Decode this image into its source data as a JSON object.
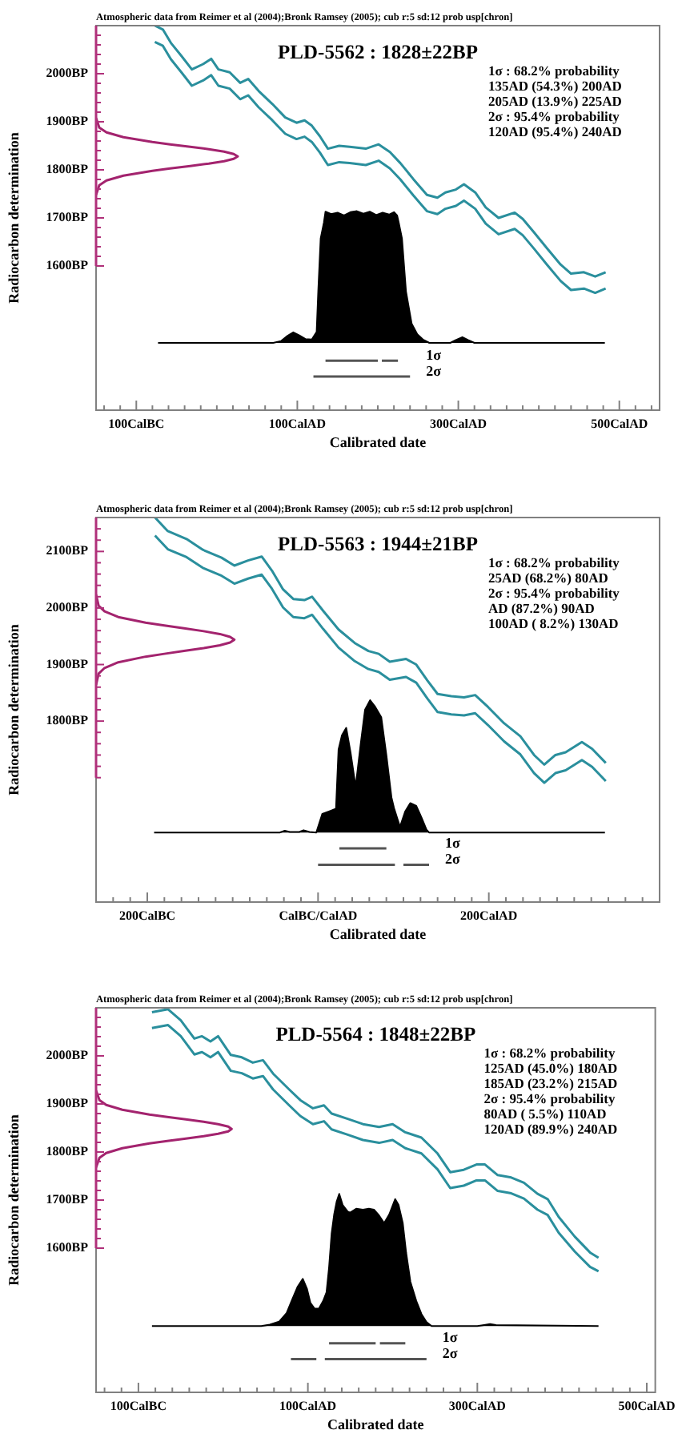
{
  "chart_data": [
    {
      "type": "line",
      "title": "PLD-5562 : 1828±22BP",
      "xlabel": "Calibrated date",
      "ylabel": "Radiocarbon determination",
      "annotations": [
        "Atmospheric data from Reimer et al (2004);Bronk Ramsey (2005); cub r:5 sd:12 prob usp[chron]",
        "1σ : 68.2% probability",
        "135AD (54.3%) 200AD",
        "205AD (13.9%) 225AD",
        "2σ : 95.4% probability",
        "120AD (95.4%) 240AD"
      ],
      "xlim": [
        -150,
        550
      ],
      "ylim": [
        1300,
        2100
      ],
      "xticks": [
        {
          "value": -140,
          "label": null
        },
        {
          "value": -120,
          "label": null
        },
        {
          "value": -100,
          "label": "100CalBC"
        },
        {
          "value": -80,
          "label": null
        },
        {
          "value": -60,
          "label": null
        },
        {
          "value": -40,
          "label": null
        },
        {
          "value": -20,
          "label": null
        },
        {
          "value": 0,
          "label": null
        },
        {
          "value": 20,
          "label": null
        },
        {
          "value": 40,
          "label": null
        },
        {
          "value": 60,
          "label": null
        },
        {
          "value": 80,
          "label": null
        },
        {
          "value": 100,
          "label": "100CalAD"
        },
        {
          "value": 120,
          "label": null
        },
        {
          "value": 140,
          "label": null
        },
        {
          "value": 160,
          "label": null
        },
        {
          "value": 180,
          "label": null
        },
        {
          "value": 200,
          "label": null
        },
        {
          "value": 220,
          "label": null
        },
        {
          "value": 240,
          "label": null
        },
        {
          "value": 260,
          "label": null
        },
        {
          "value": 280,
          "label": null
        },
        {
          "value": 300,
          "label": "300CalAD"
        },
        {
          "value": 320,
          "label": null
        },
        {
          "value": 340,
          "label": null
        },
        {
          "value": 360,
          "label": null
        },
        {
          "value": 380,
          "label": null
        },
        {
          "value": 400,
          "label": null
        },
        {
          "value": 420,
          "label": null
        },
        {
          "value": 440,
          "label": null
        },
        {
          "value": 460,
          "label": null
        },
        {
          "value": 480,
          "label": null
        },
        {
          "value": 500,
          "label": "500CalAD"
        },
        {
          "value": 520,
          "label": null
        },
        {
          "value": 540,
          "label": null
        }
      ],
      "yticks": [
        {
          "value": 1600,
          "label": "1600BP"
        },
        {
          "value": 1620,
          "label": null
        },
        {
          "value": 1640,
          "label": null
        },
        {
          "value": 1660,
          "label": null
        },
        {
          "value": 1680,
          "label": null
        },
        {
          "value": 1700,
          "label": "1700BP"
        },
        {
          "value": 1720,
          "label": null
        },
        {
          "value": 1740,
          "label": null
        },
        {
          "value": 1760,
          "label": null
        },
        {
          "value": 1780,
          "label": null
        },
        {
          "value": 1800,
          "label": "1800BP"
        },
        {
          "value": 1820,
          "label": null
        },
        {
          "value": 1840,
          "label": null
        },
        {
          "value": 1860,
          "label": null
        },
        {
          "value": 1880,
          "label": null
        },
        {
          "value": 1900,
          "label": "1900BP"
        },
        {
          "value": 1920,
          "label": null
        },
        {
          "value": 1940,
          "label": null
        },
        {
          "value": 1960,
          "label": null
        },
        {
          "value": 1980,
          "label": null
        },
        {
          "value": 2000,
          "label": "2000BP"
        },
        {
          "value": 2020,
          "label": null
        },
        {
          "value": 2040,
          "label": null
        },
        {
          "value": 2060,
          "label": null
        },
        {
          "value": 2080,
          "label": null
        }
      ],
      "series": [
        {
          "type": "line",
          "color": "#2a8f9d",
          "x": [
            -77,
            -67,
            -57,
            -44,
            -31,
            -17,
            -7,
            2,
            16,
            29,
            39,
            52,
            69,
            85,
            99,
            109,
            118,
            128,
            138,
            152,
            165,
            185,
            201,
            215,
            228,
            244,
            261,
            274,
            284,
            297,
            307,
            321,
            334,
            350,
            370,
            380,
            394,
            410,
            427,
            440,
            456,
            470,
            483
          ],
          "values": [
            2100,
            2092,
            2064,
            2037,
            2009,
            2020,
            2031,
            2009,
            2003,
            1981,
            1989,
            1964,
            1937,
            1909,
            1898,
            1903,
            1892,
            1870,
            1844,
            1850,
            1848,
            1844,
            1853,
            1837,
            1814,
            1781,
            1748,
            1742,
            1753,
            1759,
            1770,
            1753,
            1722,
            1700,
            1711,
            1698,
            1670,
            1637,
            1603,
            1584,
            1587,
            1578,
            1587
          ]
        },
        {
          "type": "line",
          "color": "#2a8f9d",
          "x": [
            -77,
            -67,
            -57,
            -44,
            -31,
            -17,
            -7,
            2,
            16,
            29,
            39,
            52,
            69,
            85,
            99,
            109,
            118,
            128,
            138,
            152,
            165,
            185,
            201,
            215,
            228,
            244,
            261,
            274,
            284,
            297,
            307,
            321,
            334,
            350,
            370,
            380,
            394,
            410,
            427,
            440,
            456,
            470,
            483
          ],
          "values": [
            2066,
            2058,
            2030,
            2003,
            1975,
            1986,
            1997,
            1975,
            1969,
            1947,
            1955,
            1930,
            1903,
            1875,
            1864,
            1869,
            1858,
            1836,
            1810,
            1816,
            1814,
            1810,
            1819,
            1803,
            1780,
            1747,
            1714,
            1708,
            1719,
            1725,
            1736,
            1719,
            1688,
            1666,
            1677,
            1664,
            1636,
            1603,
            1569,
            1550,
            1553,
            1544,
            1553
          ]
        },
        {
          "type": "line",
          "color": "#a3236e",
          "x": [
            -150,
            -146,
            -137,
            -116,
            -80,
            -58,
            -33,
            -10,
            9,
            21,
            26,
            21,
            9,
            -10,
            -33,
            -58,
            -80,
            -116,
            -137,
            -146,
            -150
          ],
          "values": [
            1908,
            1888,
            1878,
            1868,
            1858,
            1853,
            1848,
            1843,
            1838,
            1833,
            1828,
            1823,
            1818,
            1813,
            1808,
            1803,
            1798,
            1788,
            1778,
            1768,
            1748
          ]
        },
        {
          "type": "area",
          "color": "#000000",
          "x": [
            -73,
            70,
            80,
            88,
            95,
            102,
            110,
            118,
            124,
            126,
            129,
            133,
            135,
            142,
            150,
            158,
            166,
            174,
            182,
            190,
            198,
            206,
            214,
            220,
            224,
            226,
            230,
            235,
            242,
            249,
            256,
            264,
            290,
            297,
            305,
            312,
            320,
            482
          ],
          "values": [
            1440,
            1440,
            1444,
            1455,
            1462,
            1456,
            1448,
            1447,
            1463,
            1547,
            1657,
            1690,
            1713,
            1708,
            1711,
            1705,
            1712,
            1714,
            1709,
            1713,
            1706,
            1711,
            1707,
            1712,
            1705,
            1690,
            1657,
            1547,
            1480,
            1458,
            1447,
            1440,
            1440,
            1446,
            1452,
            1446,
            1440,
            1440
          ]
        },
        {
          "type": "line",
          "name": "1σ",
          "color": "#555555",
          "x": [
            135,
            200,
            null,
            205,
            225
          ],
          "values": [
            1403,
            1403,
            null,
            1403,
            1403
          ]
        },
        {
          "type": "line",
          "name": "2σ",
          "color": "#555555",
          "x": [
            120,
            240
          ],
          "values": [
            1370,
            1370
          ]
        }
      ]
    },
    {
      "type": "line",
      "title": "PLD-5563 : 1944±21BP",
      "xlabel": "Calibrated date",
      "ylabel": "Radiocarbon determination",
      "annotations": [
        "Atmospheric data from Reimer et al (2004);Bronk Ramsey (2005); cub r:5 sd:12 prob usp[chron]",
        "1σ : 68.2% probability",
        "25AD (68.2%) 80AD",
        "2σ : 95.4% probability",
        "AD (87.2%) 90AD",
        "100AD ( 8.2%) 130AD"
      ],
      "xlim": [
        -260,
        400
      ],
      "ylim": [
        1480,
        2160
      ],
      "xticks": [
        {
          "value": -240,
          "label": null
        },
        {
          "value": -220,
          "label": null
        },
        {
          "value": -200,
          "label": "200CalBC"
        },
        {
          "value": -180,
          "label": null
        },
        {
          "value": -160,
          "label": null
        },
        {
          "value": -140,
          "label": null
        },
        {
          "value": -120,
          "label": null
        },
        {
          "value": -100,
          "label": null
        },
        {
          "value": -80,
          "label": null
        },
        {
          "value": -60,
          "label": null
        },
        {
          "value": -40,
          "label": null
        },
        {
          "value": -20,
          "label": null
        },
        {
          "value": 0,
          "label": "CalBC/CalAD"
        },
        {
          "value": 20,
          "label": null
        },
        {
          "value": 40,
          "label": null
        },
        {
          "value": 60,
          "label": null
        },
        {
          "value": 80,
          "label": null
        },
        {
          "value": 100,
          "label": null
        },
        {
          "value": 120,
          "label": null
        },
        {
          "value": 140,
          "label": null
        },
        {
          "value": 160,
          "label": null
        },
        {
          "value": 180,
          "label": null
        },
        {
          "value": 200,
          "label": "200CalAD"
        },
        {
          "value": 220,
          "label": null
        },
        {
          "value": 240,
          "label": null
        },
        {
          "value": 260,
          "label": null
        },
        {
          "value": 280,
          "label": null
        },
        {
          "value": 300,
          "label": null
        },
        {
          "value": 320,
          "label": null
        },
        {
          "value": 340,
          "label": null
        },
        {
          "value": 360,
          "label": null
        },
        {
          "value": 380,
          "label": null
        }
      ],
      "yticks": [
        {
          "value": 1700,
          "label": null
        },
        {
          "value": 1720,
          "label": null
        },
        {
          "value": 1740,
          "label": null
        },
        {
          "value": 1760,
          "label": null
        },
        {
          "value": 1780,
          "label": null
        },
        {
          "value": 1800,
          "label": "1800BP"
        },
        {
          "value": 1820,
          "label": null
        },
        {
          "value": 1840,
          "label": null
        },
        {
          "value": 1860,
          "label": null
        },
        {
          "value": 1880,
          "label": null
        },
        {
          "value": 1900,
          "label": "1900BP"
        },
        {
          "value": 1920,
          "label": null
        },
        {
          "value": 1940,
          "label": null
        },
        {
          "value": 1960,
          "label": null
        },
        {
          "value": 1980,
          "label": null
        },
        {
          "value": 2000,
          "label": "2000BP"
        },
        {
          "value": 2020,
          "label": null
        },
        {
          "value": 2040,
          "label": null
        },
        {
          "value": 2060,
          "label": null
        },
        {
          "value": 2080,
          "label": null
        },
        {
          "value": 2100,
          "label": "2100BP"
        },
        {
          "value": 2120,
          "label": null
        },
        {
          "value": 2140,
          "label": null
        }
      ],
      "series": [
        {
          "type": "line",
          "color": "#2a8f9d",
          "x": [
            -191,
            -176,
            -154,
            -135,
            -113,
            -98,
            -82,
            -66,
            -54,
            -41,
            -29,
            -16,
            -7,
            6,
            24,
            43,
            59,
            71,
            84,
            103,
            115,
            128,
            140,
            156,
            171,
            184,
            199,
            218,
            237,
            253,
            265,
            278,
            290,
            309,
            321,
            337
          ],
          "values": [
            2160,
            2136,
            2122,
            2103,
            2089,
            2075,
            2084,
            2091,
            2066,
            2033,
            2016,
            2014,
            2020,
            1995,
            1962,
            1938,
            1924,
            1919,
            1905,
            1910,
            1900,
            1872,
            1848,
            1844,
            1842,
            1846,
            1825,
            1796,
            1773,
            1740,
            1723,
            1740,
            1745,
            1763,
            1751,
            1726
          ]
        },
        {
          "type": "line",
          "color": "#2a8f9d",
          "x": [
            -191,
            -176,
            -154,
            -135,
            -113,
            -98,
            -82,
            -66,
            -54,
            -41,
            -29,
            -16,
            -7,
            6,
            24,
            43,
            59,
            71,
            84,
            103,
            115,
            128,
            140,
            156,
            171,
            184,
            199,
            218,
            237,
            253,
            265,
            278,
            290,
            309,
            321,
            337
          ],
          "values": [
            2128,
            2104,
            2090,
            2071,
            2057,
            2043,
            2052,
            2059,
            2034,
            2001,
            1984,
            1982,
            1988,
            1963,
            1930,
            1906,
            1892,
            1887,
            1873,
            1878,
            1868,
            1840,
            1816,
            1812,
            1810,
            1814,
            1793,
            1764,
            1741,
            1708,
            1691,
            1708,
            1713,
            1731,
            1719,
            1694
          ]
        },
        {
          "type": "line",
          "color": "#a3236e",
          "x": [
            -260,
            -257,
            -250,
            -234,
            -202,
            -180,
            -157,
            -134,
            -115,
            -103,
            -98,
            -103,
            -115,
            -134,
            -157,
            -180,
            -202,
            -234,
            -250,
            -257,
            -260
          ],
          "values": [
            2024,
            2004,
            1994,
            1984,
            1974,
            1969,
            1964,
            1959,
            1954,
            1949,
            1944,
            1939,
            1934,
            1929,
            1924,
            1919,
            1914,
            1904,
            1894,
            1884,
            1864
          ]
        },
        {
          "type": "area",
          "color": "#000000",
          "x": [
            -192,
            -45,
            -39,
            -33,
            -22,
            -17,
            -10,
            -2,
            5,
            14,
            21,
            24,
            28,
            33,
            38,
            44,
            50,
            55,
            61,
            67,
            74,
            80,
            86,
            89,
            93,
            96,
            102,
            108,
            115,
            121,
            127,
            130,
            336
          ],
          "values": [
            1603,
            1603,
            1606,
            1604,
            1604,
            1607,
            1604,
            1603,
            1636,
            1641,
            1645,
            1750,
            1775,
            1788,
            1745,
            1684,
            1760,
            1820,
            1837,
            1825,
            1807,
            1740,
            1665,
            1646,
            1627,
            1613,
            1640,
            1655,
            1650,
            1630,
            1608,
            1603,
            1603
          ]
        },
        {
          "type": "line",
          "name": "1σ",
          "color": "#555555",
          "x": [
            25,
            80
          ],
          "values": [
            1575,
            1575
          ]
        },
        {
          "type": "line",
          "name": "2σ",
          "color": "#555555",
          "x": [
            0,
            90,
            null,
            100,
            130
          ],
          "values": [
            1546,
            1546,
            null,
            1546,
            1546
          ]
        }
      ]
    },
    {
      "type": "line",
      "title": "PLD-5564 : 1848±22BP",
      "xlabel": "Calibrated date",
      "ylabel": "Radiocarbon determination",
      "annotations": [
        "Atmospheric data from Reimer et al (2004);Bronk Ramsey (2005); cub r:5 sd:12 prob usp[chron]",
        "1σ : 68.2% probability",
        "125AD (45.0%) 180AD",
        "185AD (23.2%) 215AD",
        "2σ : 95.4% probability",
        "80AD ( 5.5%) 110AD",
        "120AD (89.9%) 240AD"
      ],
      "xlim": [
        -150,
        510
      ],
      "ylim": [
        1300,
        2100
      ],
      "xticks": [
        {
          "value": -140,
          "label": null
        },
        {
          "value": -120,
          "label": null
        },
        {
          "value": -100,
          "label": "100CalBC"
        },
        {
          "value": -80,
          "label": null
        },
        {
          "value": -60,
          "label": null
        },
        {
          "value": -40,
          "label": null
        },
        {
          "value": -20,
          "label": null
        },
        {
          "value": 0,
          "label": null
        },
        {
          "value": 20,
          "label": null
        },
        {
          "value": 40,
          "label": null
        },
        {
          "value": 60,
          "label": null
        },
        {
          "value": 80,
          "label": null
        },
        {
          "value": 100,
          "label": "100CalAD"
        },
        {
          "value": 120,
          "label": null
        },
        {
          "value": 140,
          "label": null
        },
        {
          "value": 160,
          "label": null
        },
        {
          "value": 180,
          "label": null
        },
        {
          "value": 200,
          "label": null
        },
        {
          "value": 220,
          "label": null
        },
        {
          "value": 240,
          "label": null
        },
        {
          "value": 260,
          "label": null
        },
        {
          "value": 280,
          "label": null
        },
        {
          "value": 300,
          "label": "300CalAD"
        },
        {
          "value": 320,
          "label": null
        },
        {
          "value": 340,
          "label": null
        },
        {
          "value": 360,
          "label": null
        },
        {
          "value": 380,
          "label": null
        },
        {
          "value": 400,
          "label": null
        },
        {
          "value": 420,
          "label": null
        },
        {
          "value": 440,
          "label": null
        },
        {
          "value": 460,
          "label": null
        },
        {
          "value": 480,
          "label": null
        },
        {
          "value": 500,
          "label": "500CalAD"
        }
      ],
      "yticks": [
        {
          "value": 1600,
          "label": "1600BP"
        },
        {
          "value": 1620,
          "label": null
        },
        {
          "value": 1640,
          "label": null
        },
        {
          "value": 1660,
          "label": null
        },
        {
          "value": 1680,
          "label": null
        },
        {
          "value": 1700,
          "label": "1700BP"
        },
        {
          "value": 1720,
          "label": null
        },
        {
          "value": 1740,
          "label": null
        },
        {
          "value": 1760,
          "label": null
        },
        {
          "value": 1780,
          "label": null
        },
        {
          "value": 1800,
          "label": "1800BP"
        },
        {
          "value": 1820,
          "label": null
        },
        {
          "value": 1840,
          "label": null
        },
        {
          "value": 1860,
          "label": null
        },
        {
          "value": 1880,
          "label": null
        },
        {
          "value": 1900,
          "label": "1900BP"
        },
        {
          "value": 1920,
          "label": null
        },
        {
          "value": 1940,
          "label": null
        },
        {
          "value": 1960,
          "label": null
        },
        {
          "value": 1980,
          "label": null
        },
        {
          "value": 2000,
          "label": "2000BP"
        },
        {
          "value": 2020,
          "label": null
        },
        {
          "value": 2040,
          "label": null
        },
        {
          "value": 2060,
          "label": null
        },
        {
          "value": 2080,
          "label": null
        }
      ],
      "series": [
        {
          "type": "line",
          "color": "#2a8f9d",
          "x": [
            -84,
            -65,
            -50,
            -34,
            -25,
            -15,
            -6,
            9,
            22,
            35,
            47,
            59,
            78,
            91,
            106,
            119,
            128,
            147,
            165,
            184,
            200,
            215,
            234,
            253,
            268,
            284,
            299,
            309,
            324,
            340,
            355,
            371,
            383,
            396,
            415,
            433,
            443
          ],
          "values": [
            2091,
            2097,
            2074,
            2036,
            2041,
            2030,
            2041,
            2002,
            1997,
            1986,
            1991,
            1963,
            1930,
            1908,
            1891,
            1897,
            1880,
            1869,
            1858,
            1852,
            1858,
            1841,
            1830,
            1797,
            1758,
            1763,
            1774,
            1774,
            1752,
            1747,
            1736,
            1713,
            1702,
            1665,
            1624,
            1591,
            1580
          ]
        },
        {
          "type": "line",
          "color": "#2a8f9d",
          "x": [
            -84,
            -65,
            -50,
            -34,
            -25,
            -15,
            -6,
            9,
            22,
            35,
            47,
            59,
            78,
            91,
            106,
            119,
            128,
            147,
            165,
            184,
            200,
            215,
            234,
            253,
            268,
            284,
            299,
            309,
            324,
            340,
            355,
            371,
            383,
            396,
            415,
            433,
            443
          ],
          "values": [
            2058,
            2064,
            2041,
            2003,
            2008,
            1997,
            2008,
            1969,
            1964,
            1953,
            1958,
            1930,
            1897,
            1875,
            1858,
            1864,
            1847,
            1836,
            1825,
            1819,
            1825,
            1808,
            1797,
            1764,
            1725,
            1730,
            1741,
            1741,
            1719,
            1714,
            1703,
            1680,
            1669,
            1632,
            1593,
            1561,
            1552
          ]
        },
        {
          "type": "line",
          "color": "#a3236e",
          "x": [
            -150,
            -146,
            -138,
            -119,
            -87,
            -66,
            -44,
            -23,
            -6,
            6,
            10,
            6,
            -6,
            -23,
            -44,
            -66,
            -87,
            -119,
            -138,
            -146,
            -150
          ],
          "values": [
            1928,
            1908,
            1898,
            1888,
            1878,
            1873,
            1868,
            1863,
            1858,
            1853,
            1848,
            1843,
            1838,
            1833,
            1828,
            1823,
            1818,
            1808,
            1798,
            1788,
            1768
          ]
        },
        {
          "type": "area",
          "color": "#000000",
          "x": [
            -84,
            45,
            55,
            66,
            75,
            81,
            88,
            94,
            99,
            103,
            108,
            113,
            118,
            122,
            125,
            128,
            131,
            134,
            137,
            141,
            147,
            150,
            157,
            165,
            172,
            178,
            184,
            190,
            196,
            203,
            207,
            212,
            216,
            221,
            228,
            234,
            240,
            246,
            300,
            308,
            315,
            322,
            443
          ],
          "values": [
            1438,
            1438,
            1441,
            1447,
            1465,
            1491,
            1520,
            1536,
            1515,
            1486,
            1474,
            1474,
            1490,
            1508,
            1560,
            1630,
            1670,
            1697,
            1713,
            1690,
            1676,
            1674,
            1682,
            1680,
            1682,
            1680,
            1668,
            1652,
            1670,
            1702,
            1690,
            1652,
            1590,
            1530,
            1490,
            1463,
            1446,
            1438,
            1438,
            1440,
            1442,
            1440,
            1438
          ]
        },
        {
          "type": "line",
          "name": "1σ",
          "color": "#555555",
          "x": [
            125,
            180,
            null,
            185,
            215
          ],
          "values": [
            1402,
            1402,
            null,
            1402,
            1402
          ]
        },
        {
          "type": "line",
          "name": "2σ",
          "color": "#555555",
          "x": [
            80,
            110,
            null,
            120,
            240
          ],
          "values": [
            1369,
            1369,
            null,
            1369,
            1369
          ]
        }
      ]
    }
  ]
}
